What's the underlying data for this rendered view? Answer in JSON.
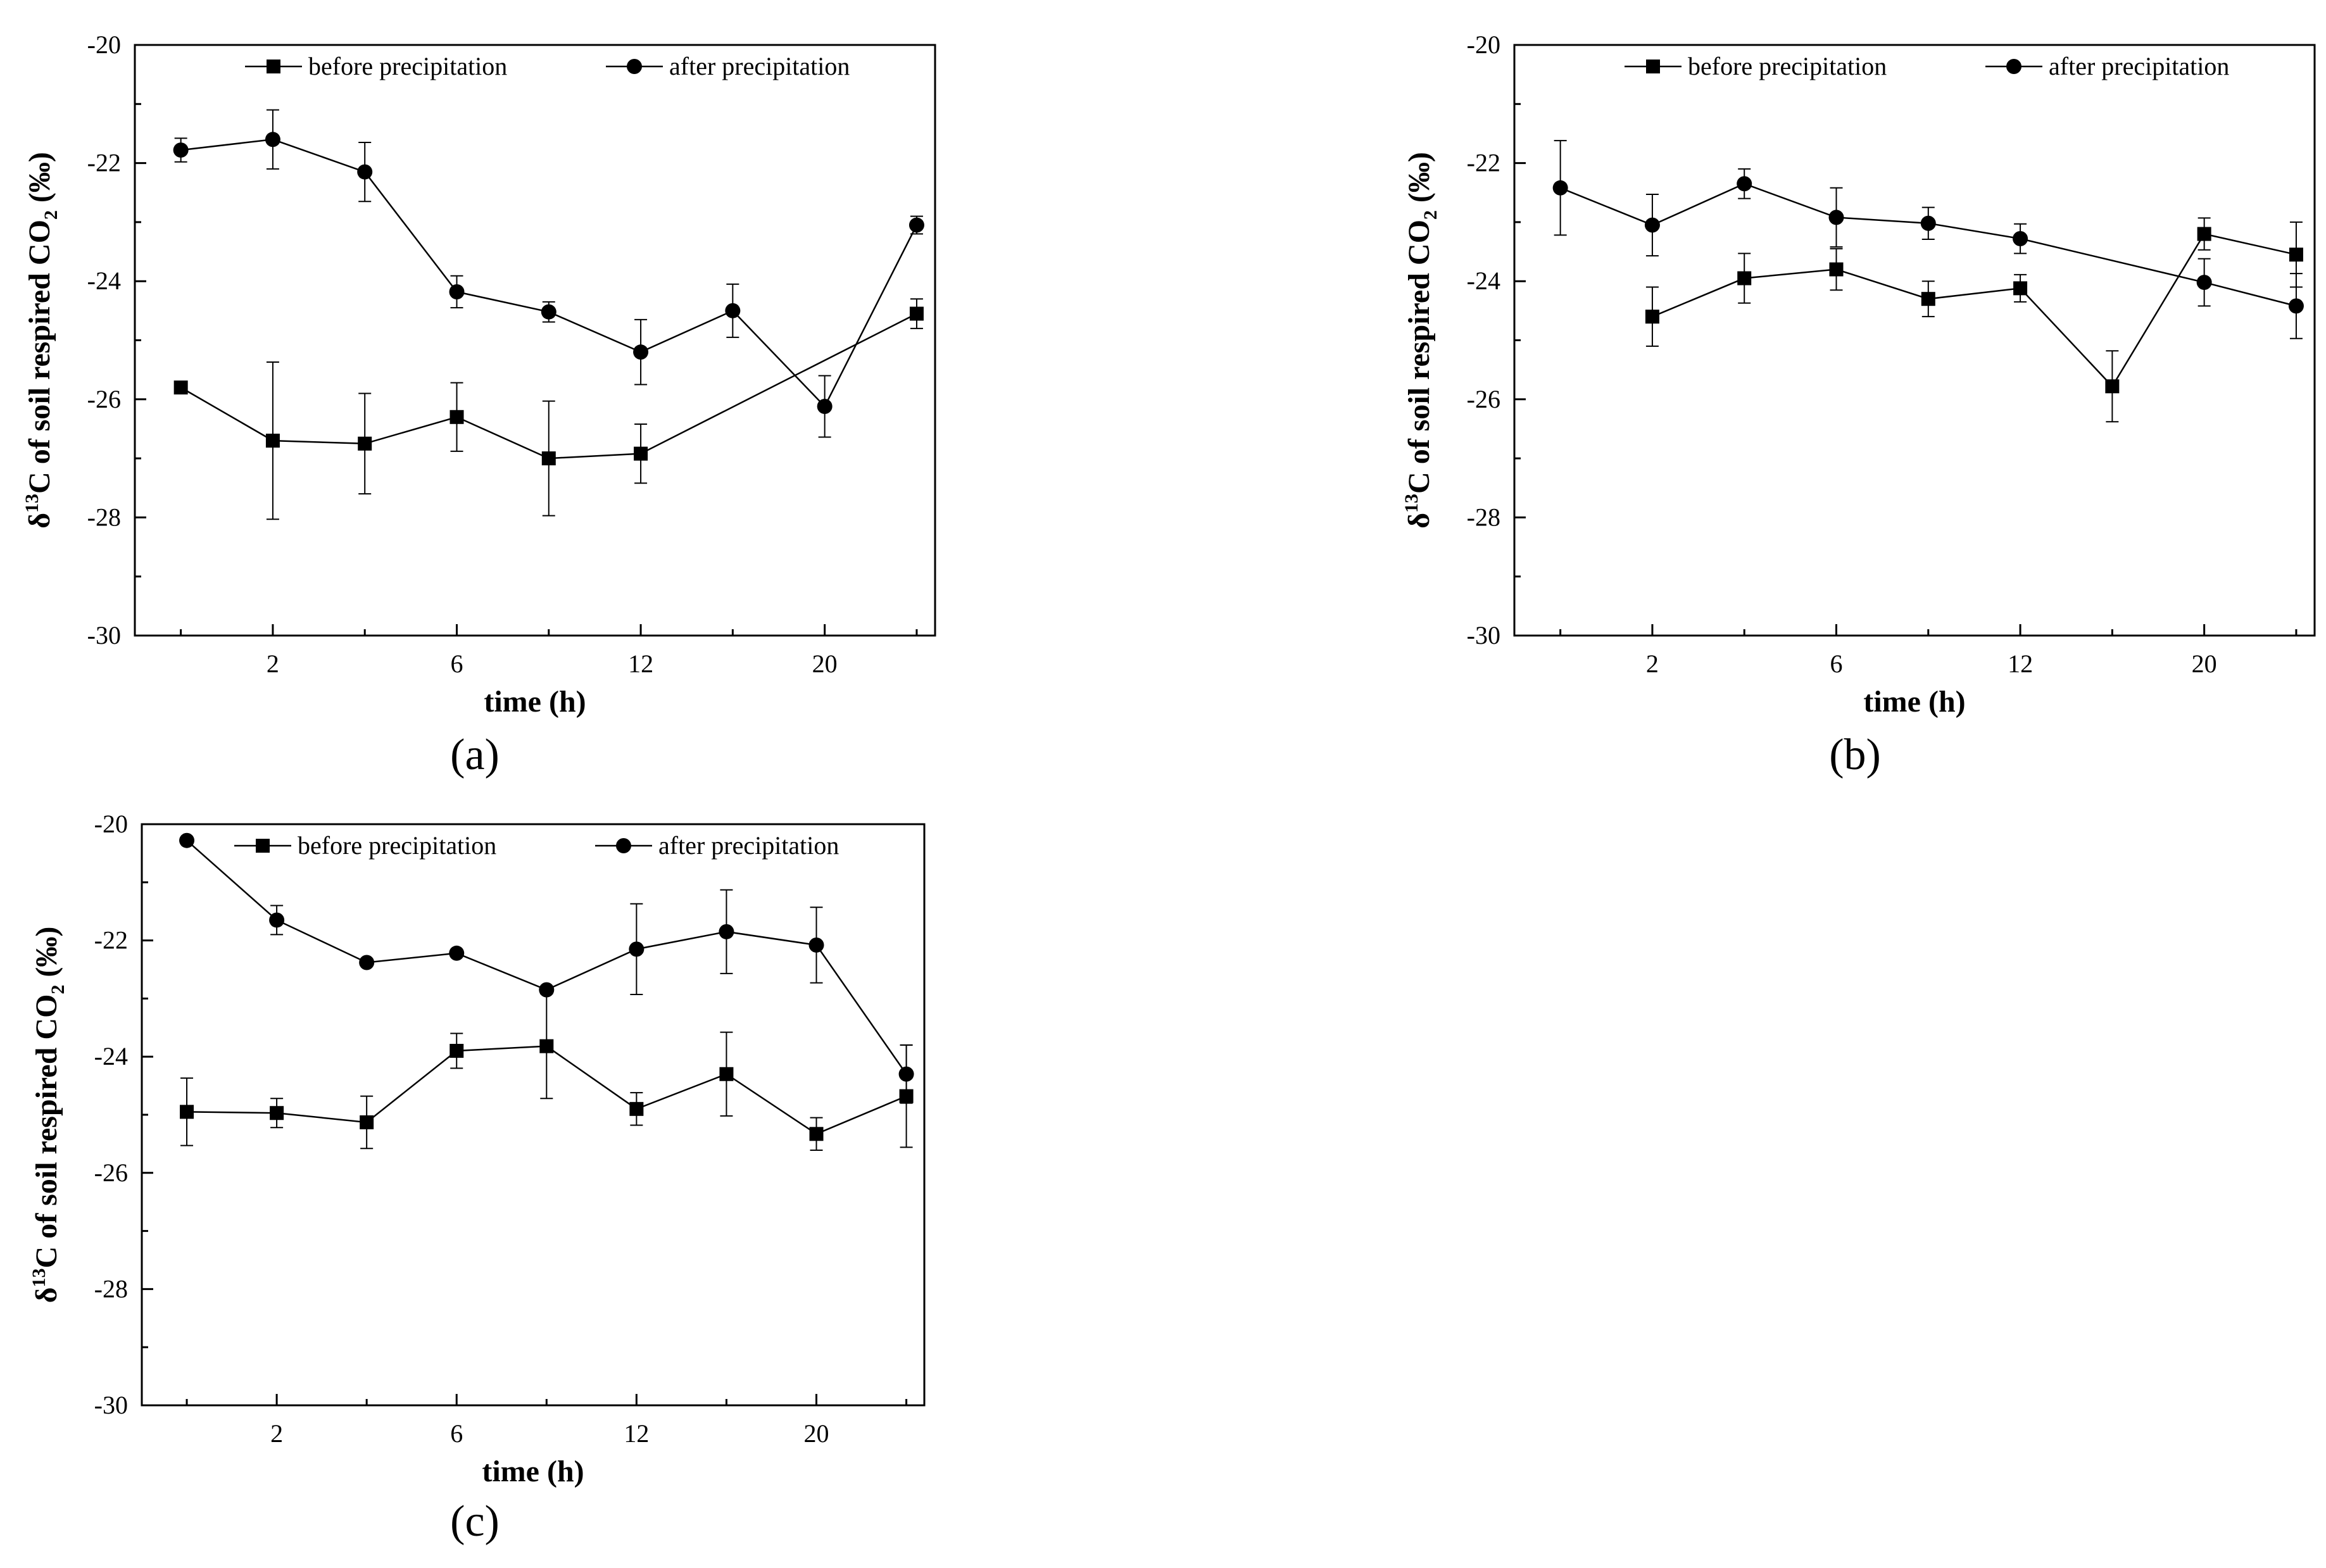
{
  "figure": {
    "panels": [
      "(a)",
      "(b)",
      "(c)"
    ]
  },
  "chart_data": [
    {
      "panel": "(a)",
      "type": "line",
      "title": "",
      "xlabel": "time (h)",
      "ylabel_prefix": "δ",
      "ylabel_sup": "13",
      "ylabel_main": "C of soil respired CO",
      "ylabel_sub": "2",
      "ylabel_suffix": " (‰)",
      "ylim": [
        -30,
        -20
      ],
      "yticks": [
        -30,
        -28,
        -26,
        -24,
        -22,
        -20
      ],
      "ytick_labels": [
        "-30",
        "-28",
        "-26",
        "-24",
        "-22",
        "-20"
      ],
      "xticks": [
        1,
        3,
        5,
        7
      ],
      "xtick_labels": [
        "2",
        "6",
        "12",
        "20"
      ],
      "xlim": [
        -0.5,
        8.2
      ],
      "x": [
        0,
        1,
        2,
        3,
        4,
        5,
        6,
        7,
        8
      ],
      "series": [
        {
          "name": "before precipitation",
          "marker": "square",
          "x": [
            0,
            1,
            2,
            3,
            4,
            5,
            8
          ],
          "values": [
            -25.8,
            -26.7,
            -26.75,
            -26.3,
            -27.0,
            -26.92,
            -24.55
          ],
          "errors": [
            0.0,
            1.33,
            0.85,
            0.58,
            0.97,
            0.5,
            0.25
          ]
        },
        {
          "name": "after precipitation",
          "marker": "circle",
          "x": [
            0,
            1,
            2,
            3,
            4,
            5,
            6,
            7,
            8
          ],
          "values": [
            -21.78,
            -21.6,
            -22.15,
            -24.18,
            -24.52,
            -25.2,
            -24.5,
            -26.12,
            -23.05
          ],
          "errors": [
            0.2,
            0.5,
            0.5,
            0.27,
            0.17,
            0.55,
            0.45,
            0.52,
            0.15
          ]
        }
      ]
    },
    {
      "panel": "(b)",
      "type": "line",
      "title": "",
      "xlabel": "time (h)",
      "ylabel_prefix": "δ",
      "ylabel_sup": "13",
      "ylabel_main": "C of soil respired CO",
      "ylabel_sub": "2",
      "ylabel_suffix": " (‰)",
      "ylim": [
        -30,
        -20
      ],
      "yticks": [
        -30,
        -28,
        -26,
        -24,
        -22,
        -20
      ],
      "ytick_labels": [
        "-30",
        "-28",
        "-26",
        "-24",
        "-22",
        "-20"
      ],
      "xticks": [
        1,
        3,
        5,
        7
      ],
      "xtick_labels": [
        "2",
        "6",
        "12",
        "20"
      ],
      "xlim": [
        -0.5,
        8.2
      ],
      "x": [
        0,
        1,
        2,
        3,
        4,
        5,
        6,
        7,
        8
      ],
      "series": [
        {
          "name": "before precipitation",
          "marker": "square",
          "x": [
            1,
            2,
            3,
            4,
            5,
            6,
            7,
            8
          ],
          "values": [
            -24.6,
            -23.95,
            -23.8,
            -24.3,
            -24.12,
            -25.78,
            -23.2,
            -23.55
          ],
          "errors": [
            0.5,
            0.42,
            0.35,
            0.3,
            0.23,
            0.6,
            0.27,
            0.55
          ]
        },
        {
          "name": "after precipitation",
          "marker": "circle",
          "x": [
            0,
            1,
            2,
            3,
            4,
            5,
            7,
            8
          ],
          "values": [
            -22.42,
            -23.05,
            -22.35,
            -22.92,
            -23.02,
            -23.28,
            -24.02,
            -24.42
          ],
          "errors": [
            0.8,
            0.52,
            0.25,
            0.5,
            0.27,
            0.25,
            0.4,
            0.55
          ]
        }
      ]
    },
    {
      "panel": "(c)",
      "type": "line",
      "title": "",
      "xlabel": "time (h)",
      "ylabel_prefix": "δ",
      "ylabel_sup": "13",
      "ylabel_main": "C of soil respired CO",
      "ylabel_sub": "2",
      "ylabel_suffix": " (‰)",
      "ylim": [
        -30,
        -20
      ],
      "yticks": [
        -30,
        -28,
        -26,
        -24,
        -22,
        -20
      ],
      "ytick_labels": [
        "-30",
        "-28",
        "-26",
        "-24",
        "-22",
        "-20"
      ],
      "xticks": [
        1,
        3,
        5,
        7
      ],
      "xtick_labels": [
        "2",
        "6",
        "12",
        "20"
      ],
      "xlim": [
        -0.5,
        8.2
      ],
      "x": [
        0,
        1,
        2,
        3,
        4,
        5,
        6,
        7,
        8
      ],
      "series": [
        {
          "name": "before precipitation",
          "marker": "square",
          "x": [
            0,
            1,
            2,
            3,
            4,
            5,
            6,
            7,
            8
          ],
          "values": [
            -24.95,
            -24.97,
            -25.13,
            -23.9,
            -23.82,
            -24.9,
            -24.3,
            -25.33,
            -24.68
          ],
          "errors": [
            0.58,
            0.25,
            0.45,
            0.3,
            0.9,
            0.28,
            0.72,
            0.28,
            0.88
          ]
        },
        {
          "name": "after precipitation",
          "marker": "circle",
          "x": [
            0,
            1,
            2,
            3,
            4,
            5,
            6,
            7,
            8
          ],
          "values": [
            -20.28,
            -21.65,
            -22.38,
            -22.22,
            -22.85,
            -22.15,
            -21.85,
            -22.08,
            -24.3
          ],
          "errors": [
            0.0,
            0.25,
            0.0,
            0.0,
            0.0,
            0.78,
            0.72,
            0.65,
            0.5
          ]
        }
      ]
    }
  ]
}
